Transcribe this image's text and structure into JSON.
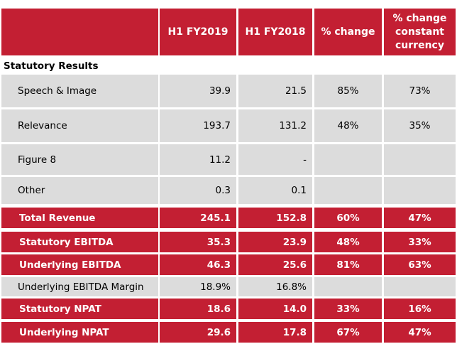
{
  "header": {
    "col1": "H1 FY2019",
    "col2": "H1 FY2018",
    "col3": "% change",
    "col4_line1": "% change",
    "col4_line2": "constant",
    "col4_line3": "currency"
  },
  "section_title": "Statutory Results",
  "rows": [
    {
      "label": "Speech & Image",
      "fy2019": "39.9",
      "fy2018": "21.5",
      "change": "85%",
      "change_cc": "73%",
      "style": "grey"
    },
    {
      "label": "Relevance",
      "fy2019": "193.7",
      "fy2018": "131.2",
      "change": "48%",
      "change_cc": "35%",
      "style": "grey"
    },
    {
      "label": "Figure 8",
      "fy2019": "11.2",
      "fy2018": "-",
      "change": "",
      "change_cc": "",
      "style": "grey"
    },
    {
      "label": "Other",
      "fy2019": "0.3",
      "fy2018": "0.1",
      "change": "",
      "change_cc": "",
      "style": "grey"
    },
    {
      "label": "Total Revenue",
      "fy2019": "245.1",
      "fy2018": "152.8",
      "change": "60%",
      "change_cc": "47%",
      "style": "red"
    },
    {
      "label": "Statutory EBITDA",
      "fy2019": "35.3",
      "fy2018": "23.9",
      "change": "48%",
      "change_cc": "33%",
      "style": "red"
    },
    {
      "label": "Underlying EBITDA",
      "fy2019": "46.3",
      "fy2018": "25.6",
      "change": "81%",
      "change_cc": "63%",
      "style": "red"
    },
    {
      "label": "Underlying EBITDA Margin",
      "fy2019": "18.9%",
      "fy2018": "16.8%",
      "change": "",
      "change_cc": "",
      "style": "grey"
    },
    {
      "label": "Statutory NPAT",
      "fy2019": "18.6",
      "fy2018": "14.0",
      "change": "33%",
      "change_cc": "16%",
      "style": "red"
    },
    {
      "label": "Underlying NPAT",
      "fy2019": "29.6",
      "fy2018": "17.8",
      "change": "67%",
      "change_cc": "47%",
      "style": "red"
    }
  ],
  "colors": {
    "accent_red": "#c31f33",
    "row_grey": "#dcdcdc"
  }
}
